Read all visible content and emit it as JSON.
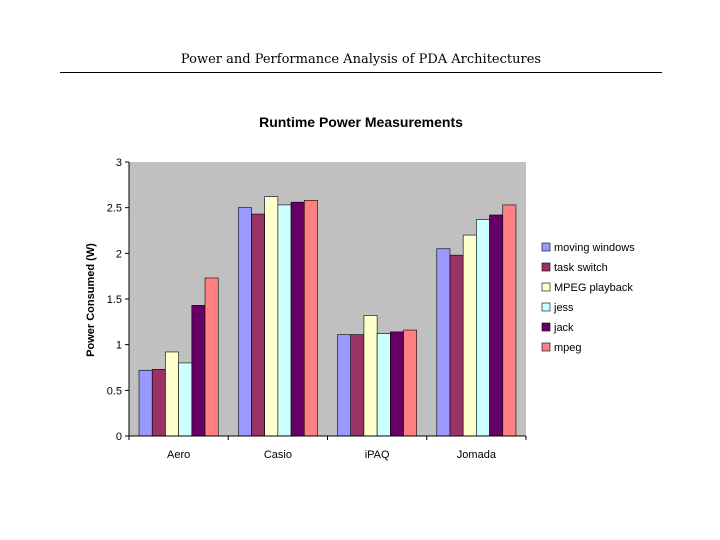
{
  "page": {
    "header": "Power and Performance Analysis of PDA Architectures"
  },
  "chart_data": {
    "type": "bar",
    "title": "Runtime Power Measurements",
    "xlabel": "",
    "ylabel": "Power Consumed (W)",
    "ylim": [
      0,
      3
    ],
    "yticks": [
      "0",
      "0.5",
      "1",
      "1.5",
      "2",
      "2.5",
      "3"
    ],
    "categories": [
      "Aero",
      "Casio",
      "iPAQ",
      "Jomada"
    ],
    "legend_position": "right",
    "grid": false,
    "plot_background": "#c0c0c0",
    "series": [
      {
        "name": "moving windows",
        "color": "#9999ff",
        "values": [
          0.72,
          2.5,
          1.11,
          2.05
        ]
      },
      {
        "name": "task switch",
        "color": "#993366",
        "values": [
          0.73,
          2.43,
          1.11,
          1.98
        ]
      },
      {
        "name": "MPEG playback",
        "color": "#ffffcc",
        "values": [
          0.92,
          2.62,
          1.32,
          2.2
        ]
      },
      {
        "name": "jess",
        "color": "#ccffff",
        "values": [
          0.8,
          2.53,
          1.12,
          2.37
        ]
      },
      {
        "name": "jack",
        "color": "#660066",
        "values": [
          1.43,
          2.56,
          1.14,
          2.42
        ]
      },
      {
        "name": "mpeg",
        "color": "#ff8080",
        "values": [
          1.73,
          2.58,
          1.16,
          2.53
        ]
      }
    ]
  }
}
